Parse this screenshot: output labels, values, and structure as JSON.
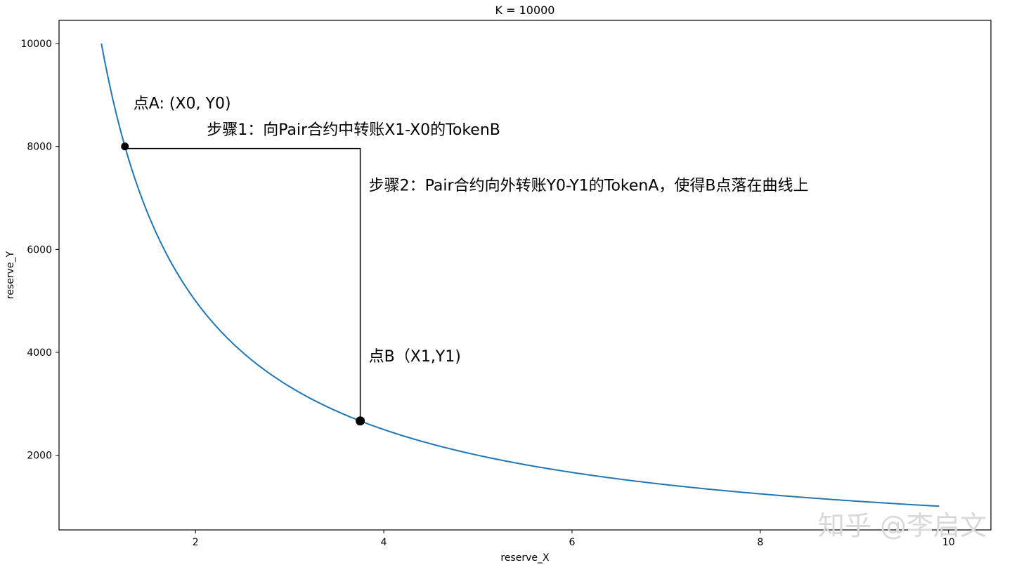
{
  "chart_data": {
    "type": "line",
    "title": "K = 10000",
    "xlabel": "reserve_X",
    "ylabel": "reserve_Y",
    "xlim": [
      0.55,
      10.45
    ],
    "ylim": [
      550,
      10450
    ],
    "x_ticks": [
      2,
      4,
      6,
      8,
      10
    ],
    "y_ticks": [
      2000,
      4000,
      6000,
      8000,
      10000
    ],
    "grid": false,
    "series": [
      {
        "function": "y = 10000 / x",
        "x_range": [
          1.0,
          9.9
        ],
        "color": "#1f77b4"
      }
    ],
    "points": [
      {
        "x": 1.25,
        "y": 8000
      },
      {
        "x": 3.75,
        "y": 2667
      }
    ],
    "connector": {
      "from": {
        "x": 1.25,
        "y": 7960
      },
      "corner": {
        "x": 3.75,
        "y": 7960
      },
      "to": {
        "x": 3.75,
        "y": 2667
      }
    },
    "annotations": [
      {
        "id": "point-a-label",
        "text": "点A: (X0, Y0)",
        "x": 1.34,
        "y": 8740
      },
      {
        "id": "step1-label",
        "text": "步骤1：向Pair合约中转账X1-X0的TokenB",
        "x": 2.12,
        "y": 8230
      },
      {
        "id": "step2-label",
        "text": "步骤2：Pair合约向外转账Y0-Y1的TokenA，使得B点落在曲线上",
        "x": 3.84,
        "y": 7140
      },
      {
        "id": "point-b-label",
        "text": "点B（X1,Y1)",
        "x": 3.84,
        "y": 3820
      }
    ],
    "watermark": "知乎 @李启文"
  }
}
